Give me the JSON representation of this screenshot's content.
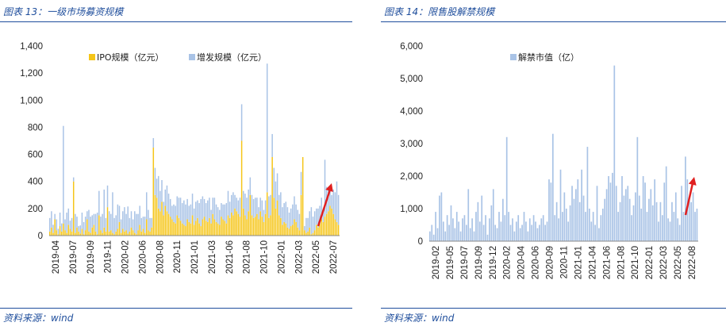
{
  "left": {
    "title": "图表 13：一级市场募资规模",
    "source": "资料来源：wind",
    "legend": [
      "IPO规模（亿元）",
      "增发规模（亿元）"
    ]
  },
  "right": {
    "title": "图表 14：限售股解禁规模",
    "source": "资料来源：wind",
    "legend": [
      "解禁市值（亿）"
    ]
  },
  "colors": {
    "ipo": "#f5c518",
    "seo": "#a9c3e6",
    "arrow": "#e02020",
    "title": "#1f4e9c"
  },
  "chart_data": [
    {
      "type": "bar",
      "stacked": true,
      "ylim": [
        0,
        1400
      ],
      "yticks": [
        "0",
        "200",
        "400",
        "600",
        "800",
        "1,000",
        "1,200",
        "1,400"
      ],
      "xticks": [
        "2019-04",
        "2019-07",
        "2019-09",
        "2019-11",
        "2020-02",
        "2020-06",
        "2020-08",
        "2020-11",
        "2021-01",
        "2021-03",
        "2021-06",
        "2021-08",
        "2021-10",
        "2022-01",
        "2022-03",
        "2022-05",
        "2022-07"
      ],
      "legend_position": "top-center",
      "annotation": "red arrow pointing up",
      "series": [
        {
          "name": "IPO规模（亿元）",
          "values": [
            30,
            60,
            20,
            120,
            40,
            10,
            70,
            30,
            90,
            40,
            20,
            80,
            50,
            30,
            400,
            20,
            60,
            30,
            15,
            50,
            10,
            40,
            120,
            30,
            20,
            60,
            80,
            30,
            10,
            150,
            40,
            20,
            60,
            30,
            210,
            30,
            40,
            20,
            10,
            30,
            50,
            100,
            20,
            50,
            30,
            40,
            15,
            30,
            60,
            40,
            20,
            10,
            40,
            80,
            30,
            50,
            20,
            120,
            40,
            30,
            60,
            650,
            300,
            280,
            200,
            180,
            250,
            150,
            220,
            180,
            160,
            140,
            120,
            100,
            90,
            150,
            130,
            110,
            90,
            80,
            70,
            120,
            100,
            90,
            150,
            80,
            110,
            130,
            90,
            70,
            120,
            140,
            110,
            100,
            130,
            90,
            160,
            120,
            100,
            90,
            80,
            140,
            120,
            110,
            90,
            150,
            130,
            170,
            150,
            200,
            180,
            160,
            140,
            700,
            200,
            150,
            120,
            180,
            300,
            150,
            130,
            140,
            160,
            120,
            180,
            140,
            100,
            160,
            320,
            130,
            150,
            580,
            280,
            200,
            260,
            150,
            130,
            80,
            100,
            90,
            60,
            50,
            70,
            80,
            120,
            100,
            60,
            40,
            300,
            580,
            40,
            20,
            30,
            60,
            10,
            20,
            40,
            80,
            60,
            90,
            120,
            100,
            140,
            160,
            180,
            220,
            200,
            160,
            120,
            100,
            80
          ]
        },
        {
          "name": "增发规模（亿元）",
          "values": [
            100,
            120,
            60,
            40,
            80,
            40,
            100,
            60,
            720,
            80,
            150,
            120,
            60,
            100,
            30,
            140,
            80,
            40,
            60,
            120,
            90,
            100,
            60,
            160,
            120,
            90,
            80,
            130,
            160,
            180,
            100,
            140,
            280,
            100,
            160,
            150,
            120,
            300,
            120,
            120,
            180,
            120,
            100,
            130,
            180,
            120,
            200,
            100,
            120,
            80,
            160,
            150,
            120,
            140,
            100,
            90,
            120,
            200,
            150,
            100,
            70,
            70,
            200,
            140,
            240,
            150,
            160,
            100,
            120,
            190,
            150,
            130,
            100,
            130,
            130,
            140,
            150,
            170,
            150,
            180,
            160,
            150,
            120,
            140,
            160,
            120,
            140,
            130,
            150,
            200,
            170,
            130,
            130,
            160,
            150,
            100,
            120,
            160,
            130,
            120,
            110,
            100,
            110,
            120,
            150,
            180,
            120,
            130,
            170,
            100,
            100,
            100,
            140,
            270,
            130,
            160,
            160,
            160,
            130,
            150,
            140,
            140,
            120,
            90,
            100,
            120,
            90,
            100,
            950,
            160,
            150,
            170,
            220,
            200,
            200,
            150,
            190,
            130,
            140,
            160,
            150,
            120,
            130,
            150,
            170,
            130,
            130,
            120,
            170,
            0,
            30,
            110,
            100,
            120,
            200,
            120,
            140,
            120,
            140,
            130,
            160,
            100,
            420,
            200,
            170,
            130,
            100,
            180,
            200,
            300,
            220
          ]
        }
      ]
    },
    {
      "type": "bar",
      "ylim": [
        0,
        6000
      ],
      "yticks": [
        "0",
        "1,000",
        "2,000",
        "3,000",
        "4,000",
        "5,000",
        "6,000"
      ],
      "xticks": [
        "2019-02",
        "2019-05",
        "2019-07",
        "2019-09",
        "2019-12",
        "2020-02",
        "2020-04",
        "2020-06",
        "2020-09",
        "2020-11",
        "2021-01",
        "2021-04",
        "2021-06",
        "2021-08",
        "2021-10",
        "2022-01",
        "2022-03",
        "2022-05",
        "2022-08"
      ],
      "legend_position": "top-center",
      "annotation": "red arrow pointing up",
      "series": [
        {
          "name": "解禁市值（亿）",
          "values": [
            300,
            500,
            200,
            900,
            400,
            1400,
            1500,
            600,
            300,
            800,
            500,
            1100,
            700,
            400,
            900,
            600,
            300,
            700,
            800,
            500,
            1600,
            400,
            700,
            300,
            900,
            1200,
            600,
            1400,
            500,
            800,
            200,
            700,
            1100,
            1600,
            500,
            400,
            900,
            600,
            1300,
            800,
            3200,
            900,
            500,
            700,
            300,
            600,
            800,
            400,
            500,
            900,
            600,
            300,
            700,
            500,
            800,
            600,
            400,
            500,
            700,
            800,
            500,
            600,
            1900,
            1800,
            3300,
            800,
            1200,
            700,
            2200,
            900,
            1500,
            1000,
            600,
            1100,
            1700,
            1300,
            1600,
            1900,
            1200,
            2200,
            1400,
            900,
            2900,
            1000,
            600,
            900,
            500,
            1700,
            400,
            800,
            1000,
            1300,
            1600,
            2000,
            1800,
            2100,
            5400,
            1700,
            900,
            1200,
            2000,
            1400,
            1600,
            1700,
            1300,
            800,
            1100,
            1500,
            3200,
            1400,
            1000,
            2000,
            1800,
            900,
            1300,
            1600,
            1100,
            1900,
            1200,
            600,
            1200,
            800,
            1800,
            2300,
            700,
            600,
            1200,
            900,
            1500,
            700,
            500,
            1700,
            900,
            2600,
            1900,
            1300,
            1200,
            1500,
            900,
            1000
          ]
        }
      ]
    }
  ]
}
